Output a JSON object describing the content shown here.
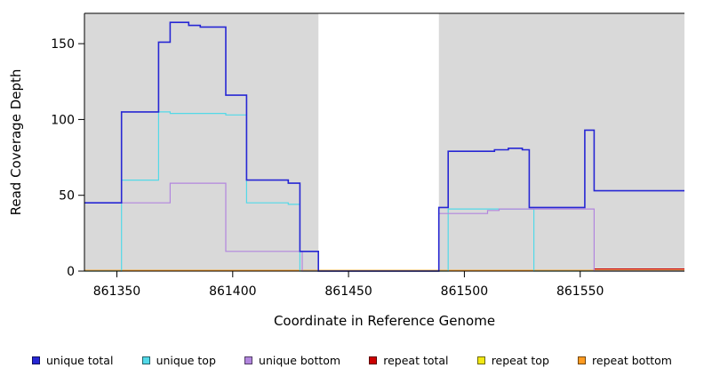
{
  "chart_data": {
    "type": "line",
    "title": "",
    "xlabel": "Coordinate in Reference Genome",
    "ylabel": "Read Coverage Depth",
    "xlim": [
      861336,
      861595
    ],
    "ylim": [
      0,
      170
    ],
    "x_ticks": [
      861350,
      861400,
      861450,
      861500,
      861550
    ],
    "y_ticks": [
      0,
      50,
      100,
      150
    ],
    "grid": false,
    "legend_position": "bottom",
    "background_bands": {
      "color": "#d9d9d9",
      "ranges": [
        [
          861336,
          861437
        ],
        [
          861489,
          861595
        ]
      ]
    },
    "series": [
      {
        "name": "repeat total",
        "color": "#cc0000",
        "width": 1.2,
        "points": [
          [
            861336,
            0.4
          ],
          [
            861556,
            0.4
          ],
          [
            861556,
            1.4
          ],
          [
            861595,
            1.4
          ]
        ]
      },
      {
        "name": "repeat top",
        "color": "#f2e813",
        "width": 1.2,
        "points": [
          [
            861336,
            0.4
          ],
          [
            861595,
            0.4
          ]
        ]
      },
      {
        "name": "repeat bottom",
        "color": "#ff9b21",
        "width": 1.2,
        "points": [
          [
            861336,
            0.4
          ],
          [
            861595,
            0.4
          ]
        ]
      },
      {
        "name": "unique top",
        "color": "#52d9e8",
        "width": 1.2,
        "points": [
          [
            861336,
            0
          ],
          [
            861352,
            0
          ],
          [
            861352,
            60
          ],
          [
            861368,
            60
          ],
          [
            861368,
            105
          ],
          [
            861373,
            105
          ],
          [
            861373,
            104
          ],
          [
            861397,
            104
          ],
          [
            861397,
            103
          ],
          [
            861406,
            103
          ],
          [
            861406,
            45
          ],
          [
            861424,
            45
          ],
          [
            861424,
            44
          ],
          [
            861429,
            44
          ],
          [
            861429,
            0
          ],
          [
            861493,
            0
          ],
          [
            861493,
            41
          ],
          [
            861530,
            41
          ],
          [
            861530,
            0
          ],
          [
            861595,
            0
          ]
        ]
      },
      {
        "name": "unique bottom",
        "color": "#b286de",
        "width": 1.2,
        "points": [
          [
            861336,
            45
          ],
          [
            861373,
            45
          ],
          [
            861373,
            58
          ],
          [
            861397,
            58
          ],
          [
            861397,
            13
          ],
          [
            861430,
            13
          ],
          [
            861430,
            0
          ],
          [
            861489,
            0
          ],
          [
            861489,
            38
          ],
          [
            861510,
            38
          ],
          [
            861510,
            40
          ],
          [
            861515,
            40
          ],
          [
            861515,
            41
          ],
          [
            861556,
            41
          ],
          [
            861556,
            0
          ],
          [
            861595,
            0
          ]
        ]
      },
      {
        "name": "unique total",
        "color": "#2727d4",
        "width": 1.6,
        "points": [
          [
            861336,
            45
          ],
          [
            861352,
            45
          ],
          [
            861352,
            105
          ],
          [
            861368,
            105
          ],
          [
            861368,
            151
          ],
          [
            861373,
            151
          ],
          [
            861373,
            164
          ],
          [
            861381,
            164
          ],
          [
            861381,
            162
          ],
          [
            861386,
            162
          ],
          [
            861386,
            161
          ],
          [
            861397,
            161
          ],
          [
            861397,
            116
          ],
          [
            861406,
            116
          ],
          [
            861406,
            60
          ],
          [
            861424,
            60
          ],
          [
            861424,
            58
          ],
          [
            861429,
            58
          ],
          [
            861429,
            13
          ],
          [
            861437,
            13
          ],
          [
            861437,
            0
          ],
          [
            861489,
            0
          ],
          [
            861489,
            42
          ],
          [
            861493,
            42
          ],
          [
            861493,
            79
          ],
          [
            861513,
            79
          ],
          [
            861513,
            80
          ],
          [
            861519,
            80
          ],
          [
            861519,
            81
          ],
          [
            861525,
            81
          ],
          [
            861525,
            80
          ],
          [
            861528,
            80
          ],
          [
            861528,
            42
          ],
          [
            861552,
            42
          ],
          [
            861552,
            93
          ],
          [
            861556,
            93
          ],
          [
            861556,
            53
          ],
          [
            861595,
            53
          ]
        ]
      }
    ],
    "legend": [
      {
        "label": "unique total",
        "color": "#2727d4"
      },
      {
        "label": "unique top",
        "color": "#52d9e8"
      },
      {
        "label": "unique bottom",
        "color": "#b286de"
      },
      {
        "label": "repeat total",
        "color": "#cc0000"
      },
      {
        "label": "repeat top",
        "color": "#f2e813"
      },
      {
        "label": "repeat bottom",
        "color": "#ff9b21"
      }
    ]
  }
}
